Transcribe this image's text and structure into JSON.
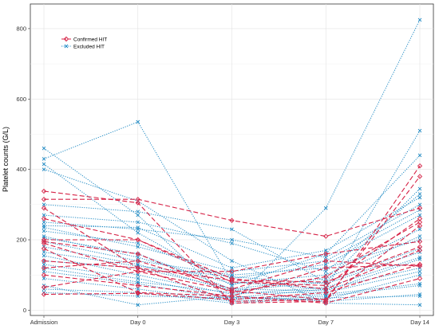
{
  "chart_data": {
    "type": "line",
    "ylabel": "Platelet counts (G/L)",
    "xlabel": "",
    "categories": [
      "Admission",
      "Day 0",
      "Day 3",
      "Day 7",
      "Day 14"
    ],
    "yticks": [
      0,
      200,
      400,
      600,
      800
    ],
    "ylim": [
      -15,
      870
    ],
    "grid": true,
    "legend": {
      "position": "top-left",
      "entries": [
        "Confirmed HIT",
        "Excluded HIT"
      ]
    },
    "colors": {
      "Confirmed HIT": "#d62246",
      "Excluded HIT": "#1f8ac4"
    },
    "series": [
      {
        "name": "Confirmed HIT",
        "values": [
          338,
          305,
          20,
          25,
          410
        ]
      },
      {
        "name": "Confirmed HIT",
        "values": [
          315,
          315,
          255,
          210,
          290
        ]
      },
      {
        "name": "Confirmed HIT",
        "values": [
          290,
          120,
          25,
          30,
          380
        ]
      },
      {
        "name": "Confirmed HIT",
        "values": [
          260,
          200,
          80,
          70,
          260
        ]
      },
      {
        "name": "Confirmed HIT",
        "values": [
          200,
          200,
          90,
          60,
          170
        ]
      },
      {
        "name": "Confirmed HIT",
        "values": [
          195,
          160,
          50,
          95,
          250
        ]
      },
      {
        "name": "Confirmed HIT",
        "values": [
          190,
          110,
          110,
          160,
          195
        ]
      },
      {
        "name": "Confirmed HIT",
        "values": [
          175,
          50,
          40,
          120,
          130
        ]
      },
      {
        "name": "Confirmed HIT",
        "values": [
          140,
          120,
          85,
          80,
          180
        ]
      },
      {
        "name": "Confirmed HIT",
        "values": [
          120,
          140,
          60,
          140,
          125
        ]
      },
      {
        "name": "Confirmed HIT",
        "values": [
          100,
          70,
          40,
          20,
          90
        ]
      },
      {
        "name": "Confirmed HIT",
        "values": [
          65,
          110,
          55,
          30,
          240
        ]
      },
      {
        "name": "Confirmed HIT",
        "values": [
          45,
          48,
          30,
          50,
          130
        ]
      },
      {
        "name": "Excluded HIT",
        "values": [
          460,
          270,
          20,
          290,
          825
        ]
      },
      {
        "name": "Excluded HIT",
        "values": [
          430,
          535,
          80,
          60,
          510
        ]
      },
      {
        "name": "Excluded HIT",
        "values": [
          415,
          220,
          70,
          160,
          440
        ]
      },
      {
        "name": "Excluded HIT",
        "values": [
          400,
          310,
          140,
          20,
          15
        ]
      },
      {
        "name": "Excluded HIT",
        "values": [
          300,
          280,
          230,
          80,
          345
        ]
      },
      {
        "name": "Excluded HIT",
        "values": [
          270,
          250,
          190,
          110,
          330
        ]
      },
      {
        "name": "Excluded HIT",
        "values": [
          250,
          230,
          200,
          150,
          300
        ]
      },
      {
        "name": "Excluded HIT",
        "values": [
          240,
          235,
          120,
          170,
          320
        ]
      },
      {
        "name": "Excluded HIT",
        "values": [
          235,
          180,
          110,
          140,
          285
        ]
      },
      {
        "name": "Excluded HIT",
        "values": [
          225,
          190,
          90,
          130,
          270
        ]
      },
      {
        "name": "Excluded HIT",
        "values": [
          210,
          150,
          75,
          100,
          230
        ]
      },
      {
        "name": "Excluded HIT",
        "values": [
          205,
          160,
          60,
          90,
          210
        ]
      },
      {
        "name": "Excluded HIT",
        "values": [
          195,
          140,
          100,
          120,
          200
        ]
      },
      {
        "name": "Excluded HIT",
        "values": [
          180,
          130,
          55,
          80,
          175
        ]
      },
      {
        "name": "Excluded HIT",
        "values": [
          165,
          125,
          95,
          75,
          165
        ]
      },
      {
        "name": "Excluded HIT",
        "values": [
          155,
          100,
          45,
          65,
          150
        ]
      },
      {
        "name": "Excluded HIT",
        "values": [
          140,
          120,
          60,
          55,
          145
        ]
      },
      {
        "name": "Excluded HIT",
        "values": [
          130,
          90,
          35,
          60,
          120
        ]
      },
      {
        "name": "Excluded HIT",
        "values": [
          120,
          80,
          50,
          50,
          110
        ]
      },
      {
        "name": "Excluded HIT",
        "values": [
          110,
          75,
          30,
          45,
          75
        ]
      },
      {
        "name": "Excluded HIT",
        "values": [
          90,
          60,
          25,
          40,
          70
        ]
      },
      {
        "name": "Excluded HIT",
        "values": [
          70,
          15,
          40,
          25,
          45
        ]
      },
      {
        "name": "Excluded HIT",
        "values": [
          60,
          50,
          20,
          35,
          40
        ]
      },
      {
        "name": "Excluded HIT",
        "values": [
          50,
          40,
          35,
          30,
          100
        ]
      }
    ]
  }
}
